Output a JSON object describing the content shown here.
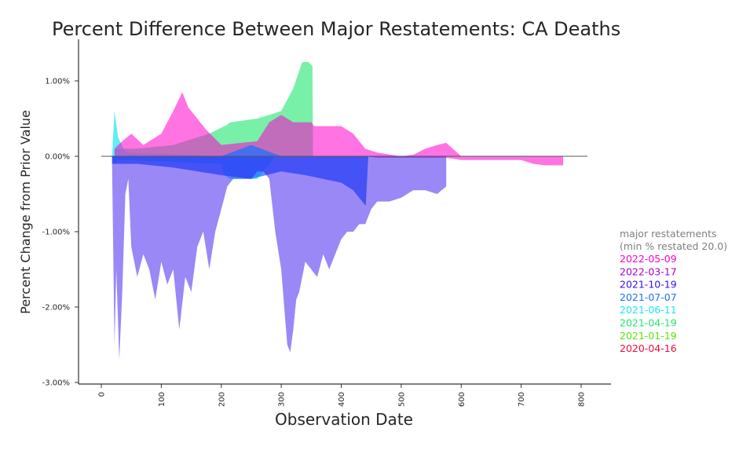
{
  "chart_data": {
    "type": "area",
    "title": "Percent Difference Between Major Restatements: CA Deaths",
    "xlabel": "Observation Date",
    "ylabel": "Percent Change from Prior Value",
    "xlim": [
      -35,
      830
    ],
    "ylim": [
      -3.0,
      1.5
    ],
    "x_ticks": [
      0,
      100,
      200,
      300,
      400,
      500,
      600,
      700,
      800
    ],
    "y_ticks": [
      1.0,
      0.0,
      -1.0,
      -2.0,
      -3.0
    ],
    "y_tick_labels": [
      "1.00%",
      "0.00%",
      "-1.00%",
      "-2.00%",
      "-3.00%"
    ],
    "x_tick_labels": [
      "0",
      "100",
      "200",
      "300",
      "400",
      "500",
      "600",
      "700",
      "800"
    ],
    "zero_line": true,
    "grid": false,
    "legend": {
      "placement": "right",
      "title_line1": "major restatements",
      "title_line2": "(min % restated 20.0)",
      "title_color": "#808080",
      "entries": [
        {
          "label": "2022-05-09",
          "color": "#ff00cc"
        },
        {
          "label": "2022-03-17",
          "color": "#aa00cc"
        },
        {
          "label": "2021-10-19",
          "color": "#3311ee"
        },
        {
          "label": "2021-07-07",
          "color": "#1e6fff"
        },
        {
          "label": "2021-06-11",
          "color": "#1ee6f0"
        },
        {
          "label": "2021-04-19",
          "color": "#1ee66e"
        },
        {
          "label": "2021-01-19",
          "color": "#55e60f"
        },
        {
          "label": "2020-04-16",
          "color": "#ee0c3c"
        }
      ]
    },
    "series": [
      {
        "name": "2021-04-19",
        "color": "#1ee66e",
        "opacity": 0.6,
        "x": [
          22,
          60,
          120,
          180,
          210,
          215,
          260,
          280,
          300,
          320,
          335,
          345,
          352,
          353
        ],
        "top": [
          0.1,
          0.1,
          0.15,
          0.3,
          0.42,
          0.45,
          0.5,
          0.55,
          0.6,
          0.9,
          1.25,
          1.25,
          1.2,
          0.0
        ],
        "bottom": [
          0,
          0,
          0,
          0,
          0,
          0,
          0,
          0,
          0,
          0,
          0,
          0,
          0,
          0
        ]
      },
      {
        "name": "2021-06-11",
        "color": "#1ee6f0",
        "opacity": 0.7,
        "x": [
          18,
          22,
          28,
          40,
          200,
          205,
          215,
          230,
          260,
          270,
          290
        ],
        "top": [
          0.0,
          0.6,
          0.25,
          0.05,
          0.0,
          0.0,
          0.0,
          0.0,
          0.0,
          0.0,
          0.0
        ],
        "bottom": [
          0.0,
          -0.1,
          -0.05,
          -0.05,
          -0.1,
          -0.25,
          -0.3,
          -0.3,
          -0.3,
          -0.2,
          0.0
        ]
      },
      {
        "name": "2022-05-09",
        "color": "#ff00cc",
        "opacity": 0.55,
        "x": [
          22,
          35,
          50,
          70,
          100,
          120,
          135,
          145,
          160,
          175,
          200,
          260,
          280,
          300,
          320,
          350,
          355,
          400,
          420,
          440,
          460,
          500,
          520,
          540,
          560,
          575,
          600,
          650,
          680,
          700,
          720,
          740,
          770
        ],
        "top": [
          0.1,
          0.2,
          0.3,
          0.15,
          0.3,
          0.6,
          0.85,
          0.65,
          0.5,
          0.35,
          0.15,
          0.2,
          0.45,
          0.55,
          0.45,
          0.45,
          0.4,
          0.4,
          0.3,
          0.1,
          0.05,
          0.0,
          0.02,
          0.1,
          0.15,
          0.18,
          0.0,
          0.0,
          0.0,
          0.0,
          0.0,
          0.0,
          0.0
        ],
        "bottom": [
          0.0,
          0.0,
          0.0,
          0.0,
          0.0,
          0.0,
          0.0,
          0.0,
          0.0,
          0.0,
          0.0,
          0.0,
          0.0,
          0.0,
          0.0,
          0.0,
          0.0,
          0.0,
          0.0,
          0.0,
          -0.02,
          -0.02,
          -0.02,
          -0.02,
          -0.02,
          -0.02,
          -0.05,
          -0.05,
          -0.05,
          -0.05,
          -0.1,
          -0.12,
          -0.12
        ]
      },
      {
        "name": "2021-07-07",
        "color": "#1e6fff",
        "opacity": 0.75,
        "x": [
          18,
          60,
          120,
          200,
          250,
          300,
          340,
          400,
          420,
          440,
          441,
          445
        ],
        "top": [
          0.0,
          0.0,
          0.0,
          0.0,
          0.15,
          0.0,
          0.0,
          0.0,
          0.0,
          0.0,
          0.0,
          0.0
        ],
        "bottom": [
          -0.1,
          -0.1,
          -0.15,
          -0.25,
          -0.3,
          -0.2,
          -0.25,
          -0.35,
          -0.45,
          -0.65,
          -0.65,
          0.0
        ]
      },
      {
        "name": "2021-10-19",
        "color": "#3311ee",
        "opacity": 0.5,
        "x": [
          18,
          22,
          25,
          30,
          35,
          40,
          45,
          50,
          60,
          70,
          80,
          90,
          100,
          110,
          120,
          130,
          140,
          150,
          160,
          170,
          180,
          190,
          200,
          210,
          220,
          230,
          240,
          250,
          260,
          270,
          280,
          290,
          300,
          305,
          310,
          315,
          320,
          325,
          330,
          340,
          350,
          360,
          370,
          380,
          400,
          410,
          420,
          430,
          440,
          450,
          460,
          480,
          500,
          510,
          520,
          540,
          560,
          575
        ],
        "top": [
          0,
          0,
          0,
          0,
          0,
          0,
          0,
          0,
          0,
          0,
          0,
          0,
          0,
          0,
          0,
          0,
          0,
          0,
          0,
          0,
          0,
          0,
          0,
          0,
          0,
          0,
          0,
          0,
          0,
          0,
          0,
          0,
          0,
          0,
          0,
          0,
          0,
          0,
          0,
          0,
          0,
          0,
          0,
          0,
          0,
          0,
          0,
          0,
          0,
          0,
          0,
          0,
          0,
          0,
          0,
          0,
          0,
          0
        ],
        "bottom": [
          -0.1,
          -2.5,
          -1.5,
          -2.7,
          -1.8,
          -0.5,
          -0.3,
          -1.2,
          -1.6,
          -1.3,
          -1.5,
          -1.9,
          -1.4,
          -1.7,
          -1.5,
          -2.3,
          -1.6,
          -1.8,
          -1.2,
          -1.0,
          -1.5,
          -1.0,
          -0.7,
          -0.4,
          -0.3,
          -0.3,
          -0.3,
          -0.3,
          -0.2,
          -0.2,
          -0.3,
          -1.0,
          -1.5,
          -2.0,
          -2.5,
          -2.6,
          -2.3,
          -1.9,
          -1.8,
          -1.4,
          -1.5,
          -1.6,
          -1.3,
          -1.5,
          -1.1,
          -1.0,
          -1.0,
          -0.9,
          -0.9,
          -0.7,
          -0.6,
          -0.6,
          -0.55,
          -0.5,
          -0.45,
          -0.45,
          -0.5,
          -0.4
        ]
      }
    ]
  }
}
